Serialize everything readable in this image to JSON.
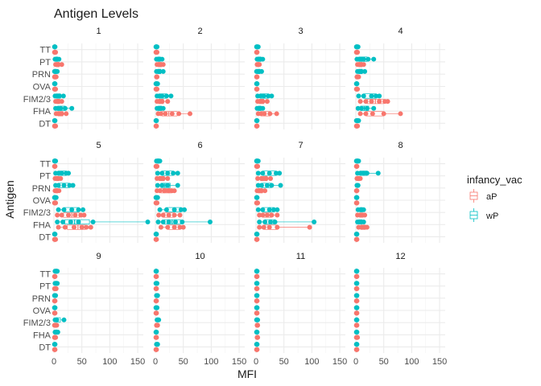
{
  "chart_data": {
    "type": "boxplot-facet",
    "title": "Antigen Levels",
    "xlabel": "MFI",
    "ylabel": "Antigen",
    "xlim": [
      0,
      160
    ],
    "x_ticks": [
      0,
      50,
      100,
      150
    ],
    "x_tick_labels": [
      "0",
      "50",
      "100",
      "150"
    ],
    "antigens": [
      "TT",
      "PT",
      "PRN",
      "OVA",
      "FIM2/3",
      "FHA",
      "DT"
    ],
    "facet_labels": [
      "1",
      "2",
      "3",
      "4",
      "5",
      "6",
      "7",
      "8",
      "9",
      "10",
      "11",
      "12"
    ],
    "legend": {
      "title": "infancy_vac",
      "placement": "right",
      "entries": [
        {
          "label": "aP",
          "color": "#F8766D"
        },
        {
          "label": "wP",
          "color": "#00BFC4"
        }
      ]
    },
    "grid": true,
    "points": {
      "1": {
        "aP": {
          "TT": [
            1,
            2,
            3
          ],
          "PT": [
            3,
            5,
            8,
            14
          ],
          "PRN": [
            1,
            2,
            3,
            4
          ],
          "OVA": [
            1,
            2,
            3
          ],
          "FIM2/3": [
            3,
            6,
            9,
            14
          ],
          "FHA": [
            4,
            8,
            14,
            22
          ],
          "DT": [
            1,
            2,
            3
          ]
        },
        "wP": {
          "TT": [
            1,
            2
          ],
          "PT": [
            2,
            4,
            6,
            9
          ],
          "PRN": [
            1,
            2,
            4,
            6
          ],
          "OVA": [
            1,
            2
          ],
          "FIM2/3": [
            2,
            5,
            10,
            17
          ],
          "FHA": [
            3,
            7,
            12,
            20,
            32
          ],
          "DT": [
            1,
            2
          ]
        }
      },
      "2": {
        "aP": {
          "TT": [
            1,
            2,
            3
          ],
          "PT": [
            3,
            6,
            10,
            14
          ],
          "PRN": [
            2,
            3
          ],
          "OVA": [
            1,
            2,
            3
          ],
          "FIM2/3": [
            3,
            7,
            12,
            22
          ],
          "FHA": [
            5,
            10,
            18,
            30,
            42,
            62
          ],
          "DT": [
            1,
            2
          ]
        },
        "wP": {
          "TT": [
            1,
            2,
            3
          ],
          "PT": [
            2,
            5,
            8,
            12
          ],
          "PRN": [
            2,
            5,
            8,
            14
          ],
          "OVA": [
            1,
            2,
            4
          ],
          "FIM2/3": [
            3,
            7,
            12,
            20,
            28
          ],
          "FHA": [
            3,
            6,
            10,
            14
          ],
          "DT": [
            1,
            2
          ]
        }
      },
      "3": {
        "aP": {
          "TT": [
            1,
            2
          ],
          "PT": [
            2,
            4,
            6
          ],
          "PRN": [
            1,
            2
          ],
          "OVA": [
            1,
            2
          ],
          "FIM2/3": [
            3,
            7,
            12,
            20
          ],
          "FHA": [
            4,
            9,
            15,
            25,
            37
          ],
          "DT": [
            1,
            2
          ]
        },
        "wP": {
          "TT": [
            1,
            2,
            4
          ],
          "PT": [
            2,
            4,
            8,
            12
          ],
          "PRN": [
            1,
            3,
            6,
            10
          ],
          "OVA": [
            1,
            2
          ],
          "FIM2/3": [
            3,
            8,
            14,
            22,
            28
          ],
          "FHA": [
            2,
            5,
            8,
            12
          ],
          "DT": [
            1,
            2
          ]
        }
      },
      "4": {
        "aP": {
          "TT": [
            1,
            2,
            3
          ],
          "PT": [
            3,
            6,
            10,
            14
          ],
          "PRN": [
            2,
            3,
            5
          ],
          "OVA": [
            1,
            2,
            3
          ],
          "FIM2/3": [
            8,
            18,
            28,
            42,
            52,
            57
          ],
          "FHA": [
            8,
            18,
            30,
            50,
            80
          ],
          "DT": [
            1,
            2,
            3
          ]
        },
        "wP": {
          "TT": [
            1,
            2,
            4
          ],
          "PT": [
            2,
            5,
            9,
            14,
            22,
            32
          ],
          "PRN": [
            3,
            6,
            10,
            16
          ],
          "OVA": [
            1,
            2
          ],
          "FIM2/3": [
            5,
            14,
            28,
            36,
            42
          ],
          "FHA": [
            4,
            10,
            20,
            32
          ],
          "DT": [
            1,
            3,
            5
          ]
        }
      },
      "5": {
        "aP": {
          "TT": [
            1,
            2
          ],
          "PT": [
            2,
            5,
            8,
            12
          ],
          "PRN": [
            2,
            4,
            6,
            9
          ],
          "OVA": [
            1,
            2,
            3
          ],
          "FIM2/3": [
            6,
            14,
            26,
            38,
            48,
            54
          ],
          "FHA": [
            8,
            20,
            36,
            50,
            58,
            66
          ],
          "DT": [
            1,
            2,
            3
          ]
        },
        "wP": {
          "TT": [
            1,
            2,
            3
          ],
          "PT": [
            3,
            8,
            14,
            22,
            26
          ],
          "PRN": [
            3,
            8,
            18,
            28,
            34
          ],
          "OVA": [
            1,
            2,
            4
          ],
          "FIM2/3": [
            8,
            18,
            32,
            44,
            52
          ],
          "FHA": [
            6,
            16,
            30,
            44,
            70,
            168
          ],
          "DT": [
            1,
            2
          ]
        }
      },
      "6": {
        "aP": {
          "TT": [
            1,
            2,
            3
          ],
          "PT": [
            3,
            8,
            14,
            22
          ],
          "PRN": [
            3,
            8,
            16,
            24,
            30,
            34
          ],
          "OVA": [
            1,
            2,
            3
          ],
          "FIM2/3": [
            6,
            14,
            24,
            34,
            44
          ],
          "FHA": [
            10,
            22,
            34,
            44,
            50
          ],
          "DT": [
            1,
            2
          ]
        },
        "wP": {
          "TT": [
            2,
            4,
            6,
            8
          ],
          "PT": [
            4,
            12,
            22,
            32,
            40
          ],
          "PRN": [
            4,
            12,
            22,
            40
          ],
          "OVA": [
            1,
            2,
            4
          ],
          "FIM2/3": [
            8,
            20,
            34,
            46,
            52
          ],
          "FHA": [
            5,
            14,
            24,
            36,
            48,
            98
          ],
          "DT": [
            1,
            2
          ]
        }
      },
      "7": {
        "aP": {
          "TT": [
            1,
            2,
            3
          ],
          "PT": [
            3,
            10,
            18,
            26
          ],
          "PRN": [
            2,
            5,
            10,
            16
          ],
          "OVA": [
            1,
            2,
            3
          ],
          "FIM2/3": [
            6,
            12,
            20,
            28,
            38
          ],
          "FHA": [
            6,
            14,
            24,
            38,
            96
          ],
          "DT": [
            1,
            2
          ]
        },
        "wP": {
          "TT": [
            1,
            2,
            4
          ],
          "PT": [
            4,
            12,
            24,
            36,
            42
          ],
          "PRN": [
            4,
            10,
            20,
            28,
            44
          ],
          "OVA": [
            1,
            2
          ],
          "FIM2/3": [
            4,
            12,
            24,
            32,
            38
          ],
          "FHA": [
            6,
            16,
            26,
            34,
            104
          ],
          "DT": [
            1,
            2
          ]
        }
      },
      "8": {
        "aP": {
          "TT": [
            1,
            2
          ],
          "PT": [
            2,
            5,
            8
          ],
          "PRN": [
            1,
            2
          ],
          "OVA": [
            1,
            2
          ],
          "FIM2/3": [
            3,
            8,
            12,
            16
          ],
          "FHA": [
            5,
            10,
            16,
            20
          ],
          "DT": [
            1,
            2
          ]
        },
        "wP": {
          "TT": [
            1,
            3,
            5
          ],
          "PT": [
            3,
            8,
            14,
            20,
            40
          ],
          "PRN": [
            2,
            4
          ],
          "OVA": [
            1,
            2
          ],
          "FIM2/3": [
            4,
            10,
            14
          ],
          "FHA": [
            3,
            6,
            10,
            14
          ],
          "DT": [
            1,
            2
          ]
        }
      },
      "9": {
        "aP": {
          "TT": [
            1,
            2
          ],
          "PT": [
            1,
            2,
            4
          ],
          "PRN": [
            1,
            2
          ],
          "OVA": [
            1,
            2
          ],
          "FIM2/3": [
            1,
            3,
            5
          ],
          "FHA": [
            1,
            2,
            3
          ],
          "DT": [
            1,
            2
          ]
        },
        "wP": {
          "TT": [
            2,
            4,
            6
          ],
          "PT": [
            2,
            4,
            6
          ],
          "PRN": [
            1,
            3
          ],
          "OVA": [
            1,
            2
          ],
          "FIM2/3": [
            2,
            5,
            18
          ],
          "FHA": [
            2,
            4,
            7
          ],
          "DT": [
            1,
            2
          ]
        }
      },
      "10": {
        "aP": {
          "TT": [
            1,
            2
          ],
          "PT": [
            1,
            2
          ],
          "PRN": [
            1,
            2
          ],
          "OVA": [
            1,
            2
          ],
          "FIM2/3": [
            2,
            4
          ],
          "FHA": [
            1,
            2
          ],
          "DT": [
            1,
            2
          ]
        },
        "wP": {
          "TT": [
            1,
            2
          ],
          "PT": [
            1,
            3
          ],
          "PRN": [
            2,
            4
          ],
          "OVA": [
            1,
            3
          ],
          "FIM2/3": [
            3,
            6
          ],
          "FHA": [
            1,
            2
          ],
          "DT": [
            2,
            4
          ]
        }
      },
      "11": {
        "aP": {
          "TT": [
            1,
            2
          ],
          "PT": [
            1,
            2
          ],
          "PRN": [
            1,
            2
          ],
          "OVA": [
            1,
            2
          ],
          "FIM2/3": [
            2,
            3
          ],
          "FHA": [
            2,
            3
          ],
          "DT": [
            1,
            2
          ]
        },
        "wP": {
          "TT": [
            1,
            2
          ],
          "PT": [
            1,
            2
          ],
          "PRN": [
            1,
            2
          ],
          "OVA": [
            1,
            2
          ],
          "FIM2/3": [
            1,
            3
          ],
          "FHA": [
            1,
            2
          ],
          "DT": [
            1,
            2
          ]
        }
      },
      "12": {
        "aP": {
          "TT": [
            1,
            2
          ],
          "PT": [
            1,
            2
          ],
          "PRN": [
            1,
            2
          ],
          "OVA": [
            1,
            2
          ],
          "FIM2/3": [
            1,
            2
          ],
          "FHA": [
            1,
            3
          ],
          "DT": [
            1,
            2
          ]
        },
        "wP": {
          "TT": [
            1,
            2
          ],
          "PT": [
            1,
            2
          ],
          "PRN": [
            1,
            2
          ],
          "OVA": [
            1,
            2
          ],
          "FIM2/3": [
            1,
            2
          ],
          "FHA": [
            1,
            2
          ],
          "DT": [
            1,
            2
          ]
        }
      }
    }
  }
}
